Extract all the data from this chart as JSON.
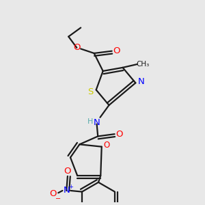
{
  "bg_color": "#e8e8e8",
  "bond_color": "#1a1a1a",
  "bond_width": 1.6,
  "atom_colors": {
    "O": "#ff0000",
    "S": "#cccc00",
    "N": "#0000ff",
    "C": "#1a1a1a",
    "H": "#5aacac"
  },
  "font_size": 8.5
}
